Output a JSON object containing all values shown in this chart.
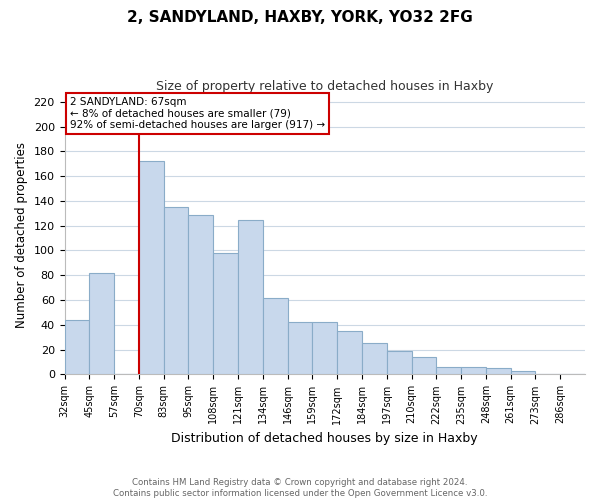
{
  "title": "2, SANDYLAND, HAXBY, YORK, YO32 2FG",
  "subtitle": "Size of property relative to detached houses in Haxby",
  "xlabel": "Distribution of detached houses by size in Haxby",
  "ylabel": "Number of detached properties",
  "bar_labels": [
    "32sqm",
    "45sqm",
    "57sqm",
    "70sqm",
    "83sqm",
    "95sqm",
    "108sqm",
    "121sqm",
    "134sqm",
    "146sqm",
    "159sqm",
    "172sqm",
    "184sqm",
    "197sqm",
    "210sqm",
    "222sqm",
    "235sqm",
    "248sqm",
    "261sqm",
    "273sqm",
    "286sqm"
  ],
  "bar_values": [
    44,
    82,
    0,
    172,
    135,
    129,
    98,
    125,
    62,
    42,
    42,
    35,
    25,
    19,
    14,
    6,
    6,
    5,
    3,
    0,
    0
  ],
  "bar_color": "#c8d8ec",
  "bar_edge_color": "#8aacc8",
  "ylim": [
    0,
    225
  ],
  "yticks": [
    0,
    20,
    40,
    60,
    80,
    100,
    120,
    140,
    160,
    180,
    200,
    220
  ],
  "reference_line_index": 3,
  "reference_line_color": "#cc0000",
  "annotation_title": "2 SANDYLAND: 67sqm",
  "annotation_line1": "← 8% of detached houses are smaller (79)",
  "annotation_line2": "92% of semi-detached houses are larger (917) →",
  "annotation_box_color": "#ffffff",
  "annotation_box_edge": "#cc0000",
  "footer_line1": "Contains HM Land Registry data © Crown copyright and database right 2024.",
  "footer_line2": "Contains public sector information licensed under the Open Government Licence v3.0.",
  "background_color": "#ffffff",
  "grid_color": "#ccd8e4"
}
